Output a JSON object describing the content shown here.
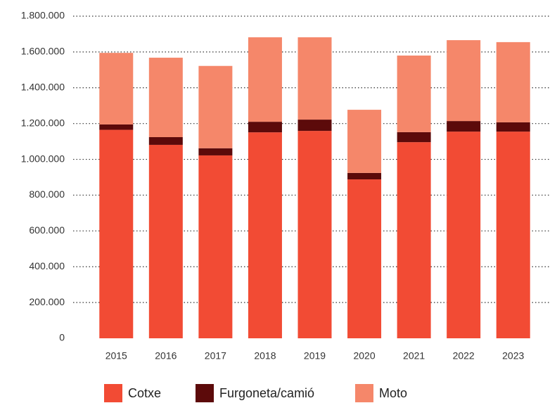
{
  "chart_data": {
    "type": "stacked_bar",
    "categories": [
      "2015",
      "2016",
      "2017",
      "2018",
      "2019",
      "2020",
      "2021",
      "2022",
      "2023"
    ],
    "series": [
      {
        "name": "Cotxe",
        "color": "#f24b34",
        "values": [
          1165000,
          1081000,
          1022000,
          1151000,
          1159000,
          888000,
          1096000,
          1155000,
          1155000
        ]
      },
      {
        "name": "Furgoneta/camió",
        "color": "#5c0a0a",
        "values": [
          30000,
          43000,
          40000,
          59000,
          63000,
          36000,
          56000,
          59000,
          52000
        ]
      },
      {
        "name": "Moto",
        "color": "#f5876a",
        "values": [
          400000,
          444000,
          460000,
          472000,
          460000,
          353000,
          428000,
          452000,
          448000
        ]
      }
    ],
    "ylim": [
      0,
      1800000
    ],
    "yticks": [
      0,
      {
        "value": 200000,
        "label": "200.000"
      },
      {
        "value": 400000,
        "label": "400.000"
      },
      {
        "value": 600000,
        "label": "600.000"
      },
      {
        "value": 800000,
        "label": "800.000"
      },
      {
        "value": 1000000,
        "label": "1.000.000"
      },
      {
        "value": 1200000,
        "label": "1.200.000"
      },
      {
        "value": 1400000,
        "label": "1.400.000"
      },
      {
        "value": 1600000,
        "label": "1.600.000"
      },
      {
        "value": 1800000,
        "label": "1.800.000"
      }
    ],
    "grid": true,
    "legend": "bottom"
  }
}
